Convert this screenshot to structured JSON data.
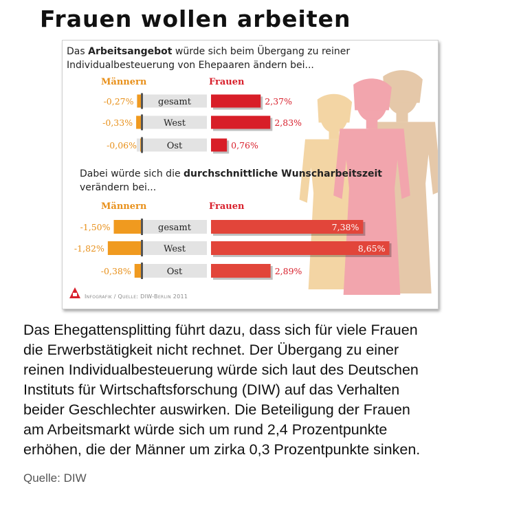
{
  "headline": "Frauen wollen arbeiten",
  "infographic": {
    "section1": {
      "title_pre": "Das ",
      "title_bold": "Arbeitsangebot",
      "title_post": " würde sich beim Übergang zu reiner",
      "title_line2": "Individualbesteuerung von Ehepaaren ändern bei..."
    },
    "section2": {
      "title_line1_pre": "Dabei würde sich die ",
      "title_line1_bold": "durchschnittliche Wunscharbeitszeit",
      "title_line2": "verändern bei..."
    },
    "men_label": "Männern",
    "women_label": "Frauen",
    "credit": "Infografik / Quelle: DIW-Berlin 2011",
    "colors": {
      "men_bar": "#f09a1f",
      "women_bar_1": "#d81e28",
      "women_bar_2": "#e2453a",
      "label_band": "#e3e3e3",
      "men_text": "#e8901a",
      "women_text": "#d8202c",
      "silhouette_1": "#f3d5a4",
      "silhouette_2": "#f2a5ad",
      "silhouette_3": "#e5c8a9"
    }
  },
  "chart_data": [
    {
      "type": "bar",
      "title": "Das Arbeitsangebot würde sich beim Übergang zu reiner Individualbesteuerung von Ehepaaren ändern bei...",
      "categories": [
        "gesamt",
        "West",
        "Ost"
      ],
      "series": [
        {
          "name": "Männern",
          "values": [
            -0.27,
            -0.33,
            -0.06
          ],
          "labels": [
            "-0,27%",
            "-0,33%",
            "-0,06%"
          ]
        },
        {
          "name": "Frauen",
          "values": [
            2.37,
            2.83,
            0.76
          ],
          "labels": [
            "2,37%",
            "2,83%",
            "0,76%"
          ]
        }
      ],
      "unit": "%"
    },
    {
      "type": "bar",
      "title": "Dabei würde sich die durchschnittliche Wunscharbeitszeit verändern bei...",
      "categories": [
        "gesamt",
        "West",
        "Ost"
      ],
      "series": [
        {
          "name": "Männern",
          "values": [
            -1.5,
            -1.82,
            -0.38
          ],
          "labels": [
            "-1,50%",
            "-1,82%",
            "-0,38%"
          ]
        },
        {
          "name": "Frauen",
          "values": [
            7.38,
            8.65,
            2.89
          ],
          "labels": [
            "7,38%",
            "8,65%",
            "2,89%"
          ]
        }
      ],
      "unit": "%"
    }
  ],
  "caption_lines": [
    "Das Ehegattensplitting führt dazu, dass sich für viele Frauen",
    "die Erwerbstätigkeit nicht rechnet. Der Übergang zu einer",
    "reinen Individualbesteuerung würde sich laut des Deutschen",
    "Instituts für Wirtschaftsforschung (DIW) auf das Verhalten",
    "beider Geschlechter auswirken. Die Beteiligung der Frauen",
    "am Arbeitsmarkt würde sich um rund 2,4 Prozentpunkte",
    "erhöhen, die der Männer um zirka 0,3 Prozentpunkte sinken."
  ],
  "source": "Quelle: DIW"
}
